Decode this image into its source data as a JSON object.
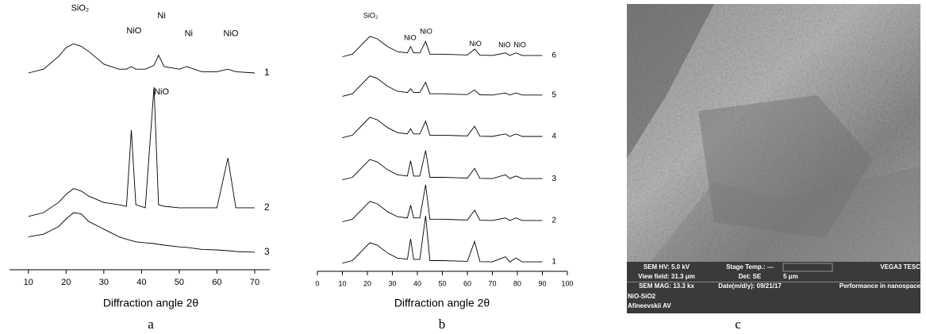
{
  "chart_data": [
    {
      "type": "line",
      "caption": "a",
      "x_label": "Diffraction angle 2θ",
      "xlim": [
        5,
        74
      ],
      "xticks": [
        10,
        20,
        30,
        40,
        50,
        60,
        70
      ],
      "ylim": [
        0,
        100
      ],
      "color": "#000000",
      "x": [
        10,
        14,
        18,
        20,
        22,
        24,
        26,
        30,
        34,
        36,
        37.3,
        38.5,
        41,
        43.3,
        44.5,
        46,
        50,
        52,
        56,
        60,
        62.9,
        65,
        70
      ],
      "series": [
        {
          "name": "1",
          "values": [
            77.5,
            79,
            84,
            87.5,
            89,
            88,
            86,
            81,
            79,
            79,
            80,
            79,
            79,
            80.5,
            84.5,
            80,
            79,
            80,
            78,
            78,
            79,
            78,
            77.5
          ]
        },
        {
          "name": "2",
          "values": [
            21,
            22.5,
            26.5,
            29.7,
            32,
            31,
            29,
            26.5,
            25.6,
            25,
            55,
            25.6,
            24.4,
            72,
            25.6,
            25,
            24.4,
            24.4,
            24.4,
            24.4,
            44,
            24.4,
            24.4
          ]
        },
        {
          "name": "3",
          "values": [
            13,
            14,
            17,
            20,
            22.5,
            22,
            19,
            16,
            13,
            12,
            11.5,
            11,
            10.6,
            10.3,
            10,
            9.7,
            9,
            8.8,
            8,
            7.8,
            7.5,
            7.2,
            6.9
          ]
        }
      ],
      "annotations": [
        {
          "text": "SiO₂",
          "x": 23.7,
          "y": 103
        },
        {
          "text": "NiO",
          "x": 38,
          "y": 94
        },
        {
          "text": "Ni",
          "x": 45.3,
          "y": 100
        },
        {
          "text": "Ni",
          "x": 52.5,
          "y": 93
        },
        {
          "text": "NiO",
          "x": 63.7,
          "y": 93
        },
        {
          "text": "NiO",
          "x": 45.3,
          "y": 70
        }
      ]
    },
    {
      "type": "line",
      "caption": "b",
      "x_label": "Diffraction angle 2θ",
      "xlim": [
        0,
        100
      ],
      "xticks": [
        0,
        10,
        20,
        30,
        40,
        50,
        60,
        70,
        80,
        90,
        100
      ],
      "ylim": [
        0,
        100
      ],
      "color": "#000000",
      "x": [
        10,
        14,
        18,
        21,
        24,
        28,
        32,
        36,
        37.3,
        38.5,
        41,
        43.3,
        45,
        50,
        56,
        60,
        62.9,
        65,
        70,
        75.2,
        77,
        79.4,
        82,
        90
      ],
      "series": [
        {
          "name": "6",
          "values": [
            84,
            85,
            89,
            92,
            91,
            88,
            86,
            85.5,
            88,
            85.5,
            85.5,
            90,
            85,
            85,
            84.8,
            84.7,
            87,
            84.6,
            84.5,
            85.5,
            84.5,
            85.5,
            84.5,
            84.5
          ]
        },
        {
          "name": "5",
          "values": [
            68.5,
            69.5,
            73.5,
            76.5,
            75.5,
            72.5,
            70.5,
            70,
            71.5,
            70,
            70,
            74,
            69.5,
            69.5,
            69.3,
            69.2,
            71,
            69.1,
            69,
            69.8,
            69,
            69.8,
            69,
            69
          ]
        },
        {
          "name": "4",
          "values": [
            52.3,
            53.3,
            57.3,
            60.3,
            59.3,
            56.3,
            54.3,
            53.8,
            55.8,
            53.8,
            53.8,
            58.8,
            53.3,
            53.3,
            53.1,
            53,
            56.8,
            52.9,
            52.8,
            53.8,
            52.8,
            53.8,
            52.8,
            52.8
          ]
        },
        {
          "name": "3",
          "values": [
            35.8,
            36.8,
            40.8,
            43.8,
            42.8,
            39.8,
            37.8,
            37.3,
            43.3,
            37.3,
            37.3,
            47.3,
            36.8,
            36.8,
            36.6,
            36.5,
            40.3,
            36.4,
            36.3,
            37.8,
            36.3,
            37.3,
            36.3,
            36.3
          ]
        },
        {
          "name": "2",
          "values": [
            19.4,
            20.4,
            24.4,
            27.4,
            26.4,
            23.4,
            21.4,
            20.9,
            25.9,
            20.9,
            20.9,
            33.9,
            20.4,
            20.4,
            20.2,
            20.1,
            23.9,
            20,
            19.9,
            20.9,
            19.9,
            20.9,
            19.9,
            19.9
          ]
        },
        {
          "name": "1",
          "values": [
            3.2,
            4.2,
            8.2,
            11.2,
            10.2,
            7.2,
            5.2,
            4.7,
            12.7,
            4.7,
            4.7,
            21.7,
            4.2,
            4.2,
            4,
            3.9,
            11.7,
            3.8,
            3.7,
            5.7,
            3.7,
            5.2,
            3.7,
            3.7
          ]
        }
      ],
      "annotations": [
        {
          "text": "SiO₂",
          "x": 21.3,
          "y": 100
        },
        {
          "text": "NiO",
          "x": 37.1,
          "y": 91.3
        },
        {
          "text": "NiO",
          "x": 43.5,
          "y": 93.8
        },
        {
          "text": "NiO",
          "x": 63.2,
          "y": 89
        },
        {
          "text": "NiO",
          "x": 74.9,
          "y": 88.5
        },
        {
          "text": "NiO",
          "x": 81,
          "y": 88.5
        }
      ]
    }
  ],
  "sem_image": {
    "caption": "c",
    "info": {
      "hv": "SEM HV: 5.0 kV",
      "stage": "Stage Temp.: ---",
      "brand": "VEGA3 TESC",
      "view": "View field: 31.3 μm",
      "det": "Det: SE",
      "scale": "5 μm",
      "mag": "SEM MAG: 13.3 kx",
      "date": "Date(m/d/y): 09/21/17",
      "slogan": "Performance in nanospace",
      "sample": "NiO-SiO2",
      "author": "Afineevskii AV"
    }
  }
}
